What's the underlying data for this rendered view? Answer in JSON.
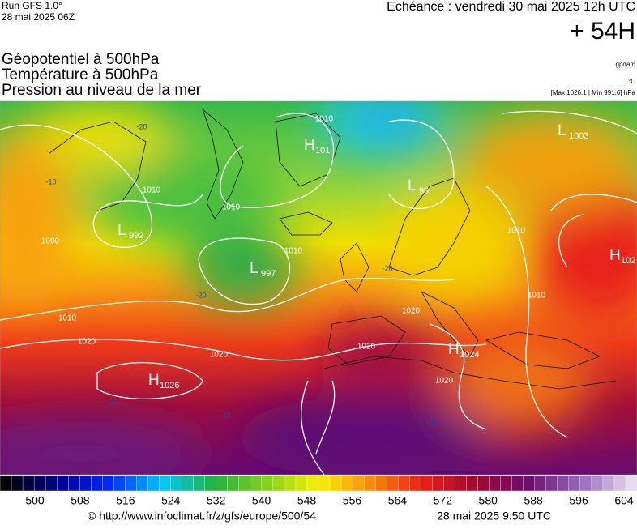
{
  "header": {
    "run": "Run GFS 1.0°",
    "run_date": "28 mai 2025 06Z",
    "valid": "Echéance : vendredi 30 mai 2025 12h UTC",
    "lead": "+ 54H"
  },
  "titles": [
    "Géopotentiel à 500hPa",
    "Température à 500hPa",
    "Pression au niveau de la mer"
  ],
  "units": {
    "geopotential": "gpdam",
    "temperature": "°C",
    "pressure_range": "[Max 1026.1 | Min 991.6] hPa"
  },
  "pressure_centers": [
    {
      "letter": "H",
      "value": 1026
    },
    {
      "letter": "H",
      "value": 1024
    },
    {
      "letter": "H",
      "value": 102
    },
    {
      "letter": "H",
      "value": 101
    },
    {
      "letter": "L",
      "value": 997
    },
    {
      "letter": "L",
      "value": 992
    },
    {
      "letter": "L",
      "value": 99
    },
    {
      "letter": "L",
      "value": 1003
    }
  ],
  "isobar_labels": [
    1010,
    1010,
    1010,
    1010,
    1010,
    1010,
    1010,
    1020,
    1020,
    1020,
    1020,
    1020,
    1000
  ],
  "temperature_labels": [
    -20,
    -20,
    -20,
    -10,
    -10,
    -10,
    -10
  ],
  "scale": {
    "ticks": [
      500,
      508,
      516,
      524,
      532,
      540,
      548,
      556,
      564,
      572,
      580,
      588,
      596,
      604
    ]
  },
  "footer": {
    "source": "© http://www.infoclimat.fr/z/gfs/europe/500/54",
    "generated": "28 mai 2025  9:50 UTC"
  }
}
